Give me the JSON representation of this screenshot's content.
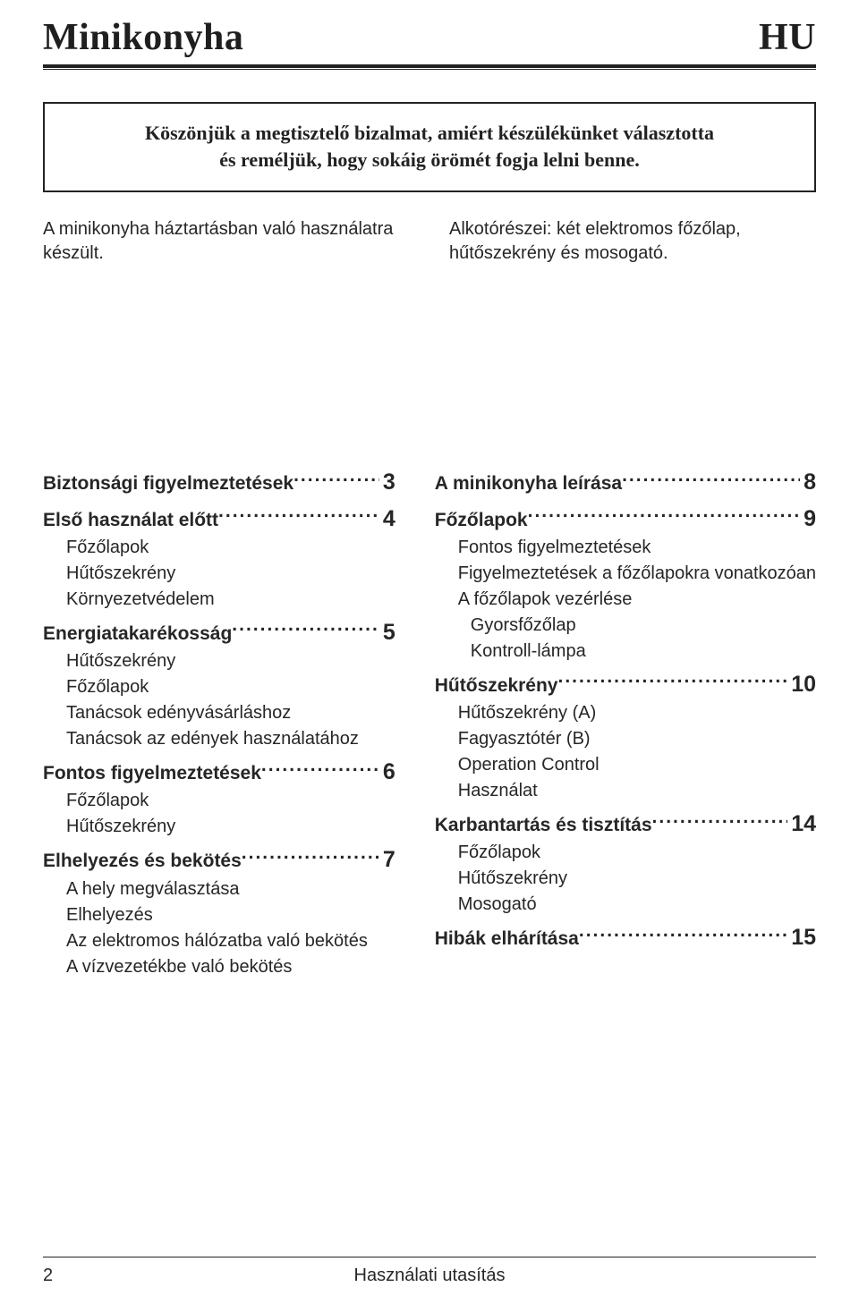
{
  "header": {
    "title_left": "Minikonyha",
    "title_right": "HU"
  },
  "thanks": {
    "line1": "Köszönjük a megtisztelő bizalmat, amiért készülékünket választotta",
    "line2": "és reméljük, hogy sokáig örömét fogja lelni benne."
  },
  "intro": {
    "left": "A minikonyha háztartásban való használatra készült.",
    "right": "Alkotórészei: két elektromos főzőlap, hűtőszekrény és mosogató."
  },
  "toc": {
    "left": [
      {
        "type": "section",
        "label": "Biztonsági figyelmeztetések",
        "page": "3"
      },
      {
        "type": "section",
        "label": "Első használat előtt",
        "page": "4"
      },
      {
        "type": "sub",
        "label": "Főzőlapok"
      },
      {
        "type": "sub",
        "label": "Hűtőszekrény"
      },
      {
        "type": "sub",
        "label": "Környezetvédelem"
      },
      {
        "type": "section",
        "label": "Energiatakarékosság",
        "page": "5"
      },
      {
        "type": "sub",
        "label": "Hűtőszekrény"
      },
      {
        "type": "sub",
        "label": "Főzőlapok"
      },
      {
        "type": "sub",
        "label": "Tanácsok edényvásárláshoz"
      },
      {
        "type": "sub",
        "label": "Tanácsok az edények használatához"
      },
      {
        "type": "section",
        "label": "Fontos figyelmeztetések",
        "page": "6"
      },
      {
        "type": "sub",
        "label": "Főzőlapok"
      },
      {
        "type": "sub",
        "label": "Hűtőszekrény"
      },
      {
        "type": "section",
        "label": "Elhelyezés és bekötés",
        "page": "7"
      },
      {
        "type": "sub",
        "label": "A hely megválasztása"
      },
      {
        "type": "sub",
        "label": "Elhelyezés"
      },
      {
        "type": "sub",
        "label": "Az elektromos hálózatba való bekötés"
      },
      {
        "type": "sub",
        "label": "A vízvezetékbe való bekötés"
      }
    ],
    "right": [
      {
        "type": "section",
        "label": "A minikonyha leírása",
        "page": "8"
      },
      {
        "type": "section",
        "label": "Főzőlapok",
        "page": "9"
      },
      {
        "type": "sub",
        "label": "Fontos figyelmeztetések"
      },
      {
        "type": "sub",
        "label": "Figyelmeztetések a főzőlapokra vonatkozóan"
      },
      {
        "type": "sub",
        "label": "A főzőlapok vezérlése"
      },
      {
        "type": "sub",
        "label": "Gyorsfőzőlap",
        "indent": 2
      },
      {
        "type": "sub",
        "label": "Kontroll-lámpa",
        "indent": 2
      },
      {
        "type": "section",
        "label": "Hűtőszekrény",
        "page": "10"
      },
      {
        "type": "sub",
        "label": "Hűtőszekrény (A)"
      },
      {
        "type": "sub",
        "label": "Fagyasztótér (B)"
      },
      {
        "type": "sub",
        "label": "Operation Control"
      },
      {
        "type": "sub",
        "label": "Használat"
      },
      {
        "type": "section",
        "label": "Karbantartás és tisztítás",
        "page": "14"
      },
      {
        "type": "sub",
        "label": "Főzőlapok"
      },
      {
        "type": "sub",
        "label": "Hűtőszekrény"
      },
      {
        "type": "sub",
        "label": "Mosogató"
      },
      {
        "type": "section",
        "label": "Hibák elhárítása",
        "page": "15"
      }
    ]
  },
  "footer": {
    "page_num": "2",
    "doc_label": "Használati utasítás"
  }
}
